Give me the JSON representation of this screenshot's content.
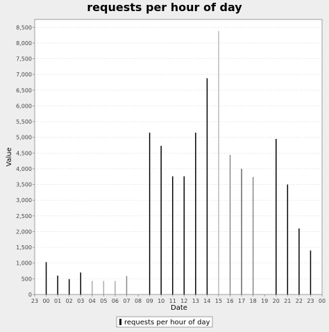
{
  "chart_data": {
    "type": "bar",
    "title": "requests per hour of day",
    "xlabel": "Date",
    "ylabel": "Value",
    "x_ticks": [
      "23",
      "00",
      "01",
      "02",
      "03",
      "04",
      "05",
      "06",
      "07",
      "08",
      "09",
      "10",
      "11",
      "12",
      "13",
      "14",
      "15",
      "16",
      "17",
      "18",
      "19",
      "20",
      "21",
      "22",
      "23",
      "00"
    ],
    "categories": [
      "00",
      "01",
      "02",
      "03",
      "04",
      "05",
      "06",
      "07",
      "08",
      "09",
      "10",
      "11",
      "12",
      "13",
      "14",
      "15",
      "16",
      "17",
      "18",
      "19",
      "20",
      "21",
      "22",
      "23"
    ],
    "series": [
      {
        "name": "requests per hour of day",
        "values": [
          1030,
          600,
          490,
          700,
          430,
          430,
          430,
          590,
          0,
          5150,
          4730,
          3760,
          3760,
          5150,
          6880,
          8380,
          4440,
          4000,
          3740,
          0,
          4950,
          3500,
          2100,
          1400
        ]
      }
    ],
    "ylim": [
      0,
      8750
    ],
    "y_ticks": [
      0,
      500,
      1000,
      1500,
      2000,
      2500,
      3000,
      3500,
      4000,
      4500,
      5000,
      5500,
      6000,
      6500,
      7000,
      7500,
      8000,
      8500
    ],
    "y_tick_labels": [
      "0",
      "500",
      "1,000",
      "1,500",
      "2,000",
      "2,500",
      "3,000",
      "3,500",
      "4,000",
      "4,500",
      "5,000",
      "5,500",
      "6,000",
      "6,500",
      "7,000",
      "7,500",
      "8,000",
      "8,500"
    ],
    "bar_colors": [
      "#000000",
      "#000000",
      "#000000",
      "#000000",
      "#aaaaaa",
      "#aaaaaa",
      "#aaaaaa",
      "#888888",
      "#000000",
      "#000000",
      "#000000",
      "#000000",
      "#000000",
      "#000000",
      "#000000",
      "#bbbbbb",
      "#888888",
      "#666666",
      "#888888",
      "#000000",
      "#000000",
      "#000000",
      "#000000",
      "#000000"
    ],
    "grid": true,
    "legend_position": "bottom",
    "colors": {
      "plot_background": "#ffffff",
      "page_background": "#eeeeee",
      "grid": "#d8d8d8",
      "bar": "#000000"
    }
  }
}
